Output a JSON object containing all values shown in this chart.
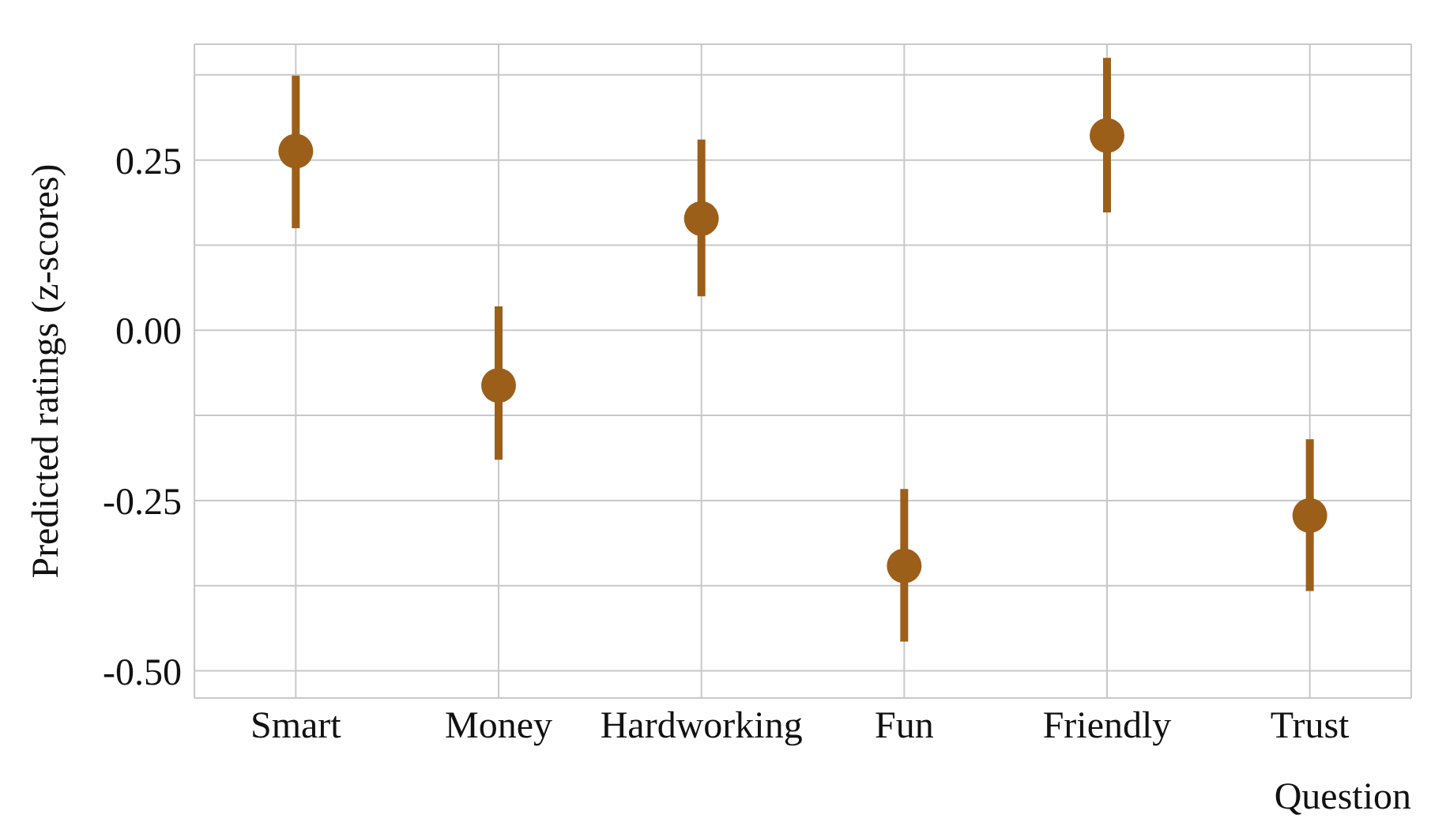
{
  "chart_data": {
    "type": "scatter",
    "xlabel": "Question",
    "ylabel": "Predicted ratings (z-scores)",
    "categories": [
      "Smart",
      "Money",
      "Hardworking",
      "Fun",
      "Friendly",
      "Trust"
    ],
    "series": [
      {
        "color": "#9c5f1a",
        "values": [
          0.263,
          -0.081,
          0.164,
          -0.346,
          0.286,
          -0.272
        ],
        "errors": [
          [
            0.15,
            0.374
          ],
          [
            -0.19,
            0.035
          ],
          [
            0.05,
            0.28
          ],
          [
            -0.457,
            -0.233
          ],
          [
            0.173,
            0.4
          ],
          [
            -0.383,
            -0.16
          ]
        ]
      }
    ],
    "ylim": [
      -0.54,
      0.42
    ],
    "yticks": [
      {
        "value": -0.5,
        "label": "-0.50"
      },
      {
        "value": -0.375,
        "label": null
      },
      -0.25,
      {
        "value": -0.125,
        "label": null
      },
      {
        "value": 0,
        "label": "0.00"
      },
      {
        "value": 0.125,
        "label": null
      },
      0.25,
      {
        "value": 0.375,
        "label": null
      }
    ],
    "grid": true,
    "marker": "circle"
  }
}
